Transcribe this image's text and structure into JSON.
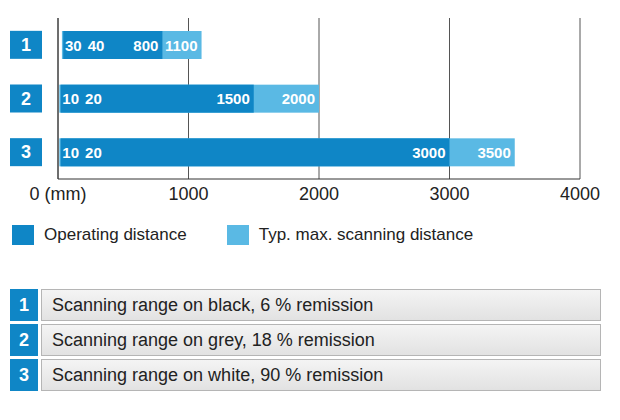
{
  "chart_data": {
    "type": "bar",
    "orientation": "horizontal",
    "categories": [
      "1",
      "2",
      "3"
    ],
    "series": [
      {
        "name": "Operating distance",
        "color": "#0f86c6",
        "values": [
          [
            40,
            800
          ],
          [
            20,
            1500
          ],
          [
            20,
            3000
          ]
        ]
      },
      {
        "name": "Typ. max. scanning distance",
        "color": "#5ab9e4",
        "values": [
          [
            30,
            1100
          ],
          [
            10,
            2000
          ],
          [
            10,
            3500
          ]
        ]
      }
    ],
    "xlim": [
      0,
      4000
    ],
    "xticks": [
      {
        "value": 0,
        "label": "0 (mm)"
      },
      1000,
      2000,
      3000,
      4000
    ],
    "grid": true,
    "data_labels": true,
    "legend": "bottom"
  },
  "range_key": [
    {
      "label": "1",
      "text": "Scanning range on black, 6 % remission"
    },
    {
      "label": "2",
      "text": "Scanning range on grey, 18 % remission"
    },
    {
      "label": "3",
      "text": "Scanning range on white, 90 % remission"
    }
  ]
}
